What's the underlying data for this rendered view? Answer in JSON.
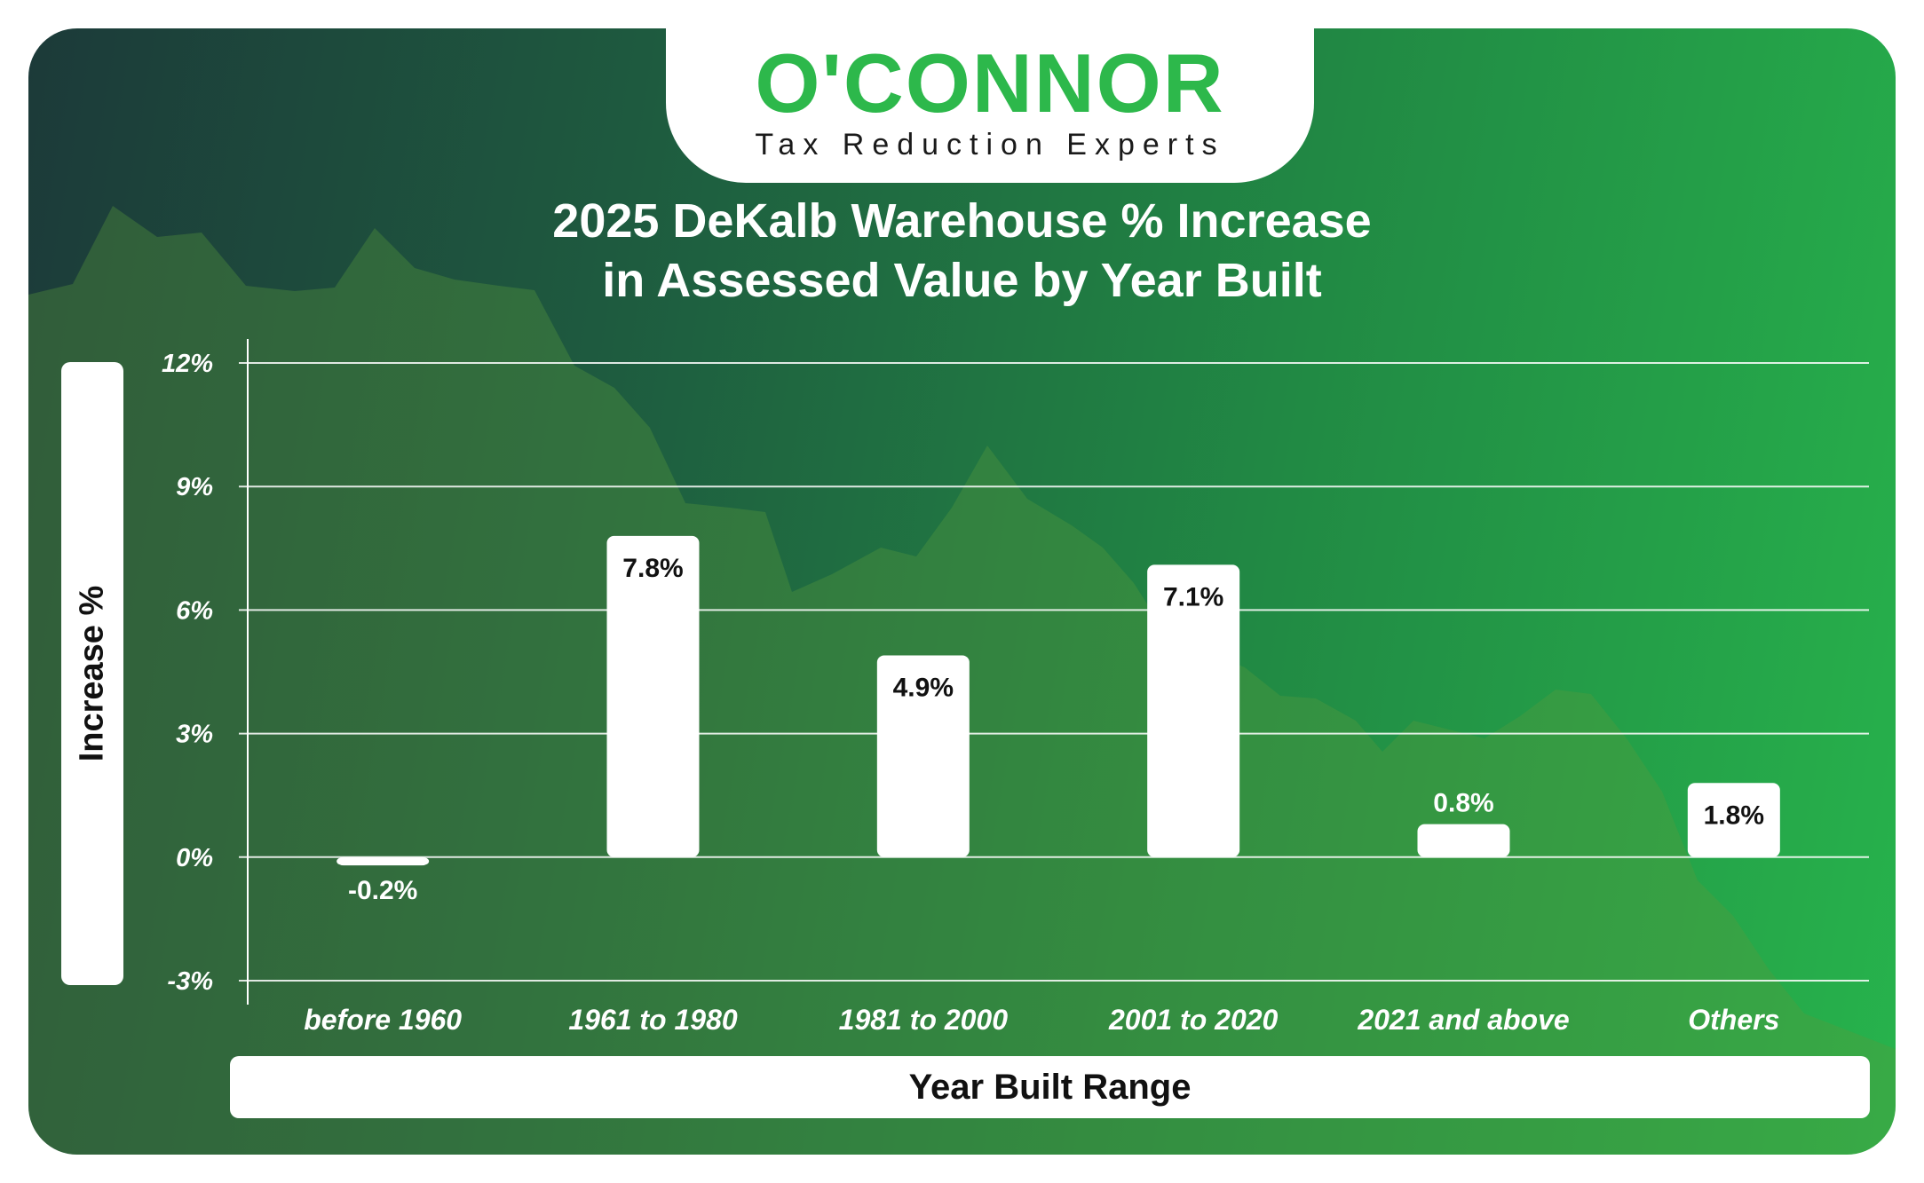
{
  "brand": {
    "wordmark": "O'CONNOR",
    "tagline": "Tax Reduction Experts",
    "accent_color": "#2db84b"
  },
  "chart_data": {
    "type": "bar",
    "title_line1": "2025 DeKalb Warehouse % Increase",
    "title_line2": "in Assessed Value by Year Built",
    "xlabel": "Year Built Range",
    "ylabel": "Increase %",
    "categories": [
      "before 1960",
      "1961 to 1980",
      "1981 to 2000",
      "2001 to 2020",
      "2021 and above",
      "Others"
    ],
    "values": [
      -0.2,
      7.8,
      4.9,
      7.1,
      0.8,
      1.8
    ],
    "value_labels": [
      "-0.2%",
      "7.8%",
      "4.9%",
      "7.1%",
      "0.8%",
      "1.8%"
    ],
    "ylim": [
      -3,
      12
    ],
    "yticks": [
      -3,
      0,
      3,
      6,
      9,
      12
    ],
    "ytick_labels": [
      "-3%",
      "0%",
      "3%",
      "6%",
      "9%",
      "12%"
    ],
    "grid": true,
    "bar_color": "#ffffff"
  }
}
